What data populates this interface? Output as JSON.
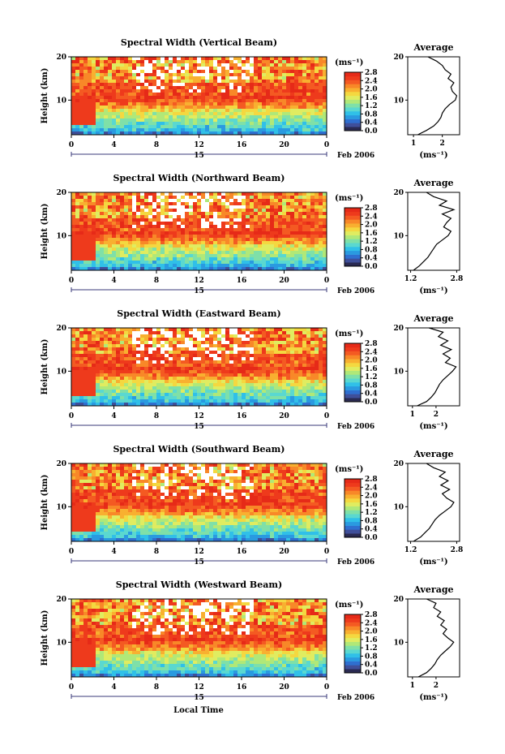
{
  "colors": {
    "scale": [
      "#2a2a52",
      "#3f4f9a",
      "#2f6fd0",
      "#2a9ae0",
      "#30c0e8",
      "#5ad8d0",
      "#7fe0a8",
      "#b0e878",
      "#e0ec60",
      "#f4d840",
      "#f8b030",
      "#f88828",
      "#f45a22",
      "#ee3a1c",
      "#e62a18"
    ]
  },
  "footer": {
    "xlabel": "Local Time"
  },
  "chart_data": [
    {
      "type": "heatmap",
      "title": "Spectral Width (Vertical Beam)",
      "ylabel": "Height (km)",
      "ylim": [
        2,
        20
      ],
      "yticks": [
        10,
        20
      ],
      "xlim": [
        0,
        24
      ],
      "xticks": [
        "0",
        "4",
        "8",
        "12",
        "16",
        "20",
        "0"
      ],
      "day_label": "15",
      "date_label": "Feb 2006",
      "colorbar": {
        "unit": "(ms⁻¹)",
        "ticks": [
          "0.0",
          "0.4",
          "0.8",
          "1.2",
          "1.6",
          "2.0",
          "2.4",
          "2.8"
        ]
      },
      "profile": {
        "title": "Average",
        "xlabel": "(ms⁻¹)",
        "xticks": [
          "1",
          "2"
        ],
        "xlim": [
          0.8,
          2.6
        ],
        "height": [
          2,
          3,
          4,
          5,
          6,
          7,
          8,
          9,
          10,
          11,
          12,
          13,
          14,
          15,
          16,
          17,
          18,
          19,
          20
        ],
        "values": [
          1.15,
          1.45,
          1.7,
          1.85,
          1.95,
          2.0,
          2.1,
          2.25,
          2.45,
          2.5,
          2.35,
          2.3,
          2.4,
          2.2,
          2.3,
          2.1,
          2.0,
          1.8,
          1.5
        ]
      }
    },
    {
      "type": "heatmap",
      "title": "Spectral Width (Northward Beam)",
      "ylabel": "Height (km)",
      "ylim": [
        2,
        20
      ],
      "yticks": [
        10,
        20
      ],
      "xlim": [
        0,
        24
      ],
      "xticks": [
        "0",
        "4",
        "8",
        "12",
        "16",
        "20",
        "0"
      ],
      "day_label": "15",
      "date_label": "Feb 2006",
      "colorbar": {
        "unit": "(ms⁻¹)",
        "ticks": [
          "0.0",
          "0.4",
          "0.8",
          "1.2",
          "1.6",
          "2.0",
          "2.4",
          "2.8"
        ]
      },
      "profile": {
        "title": "Average",
        "xlabel": "(ms⁻¹)",
        "xticks": [
          "1.2",
          "2.8"
        ],
        "xlim": [
          1.1,
          2.9
        ],
        "height": [
          2,
          3,
          4,
          5,
          6,
          7,
          8,
          9,
          10,
          11,
          12,
          13,
          14,
          15,
          16,
          17,
          18,
          19,
          20
        ],
        "values": [
          1.3,
          1.5,
          1.65,
          1.8,
          1.9,
          2.0,
          2.1,
          2.3,
          2.5,
          2.6,
          2.35,
          2.45,
          2.6,
          2.3,
          2.7,
          2.2,
          2.45,
          2.0,
          1.75
        ]
      }
    },
    {
      "type": "heatmap",
      "title": "Spectral Width (Eastward Beam)",
      "ylabel": "Height (km)",
      "ylim": [
        2,
        20
      ],
      "yticks": [
        10,
        20
      ],
      "xlim": [
        0,
        24
      ],
      "xticks": [
        "0",
        "4",
        "8",
        "12",
        "16",
        "20",
        "0"
      ],
      "day_label": "15",
      "date_label": "Feb 2006",
      "colorbar": {
        "unit": "(ms⁻¹)",
        "ticks": [
          "0.0",
          "0.4",
          "0.8",
          "1.2",
          "1.6",
          "2.0",
          "2.4",
          "2.8"
        ]
      },
      "profile": {
        "title": "Average",
        "xlabel": "(ms⁻¹)",
        "xticks": [
          "1",
          "2"
        ],
        "xlim": [
          0.8,
          3.0
        ],
        "height": [
          2,
          3,
          4,
          5,
          6,
          7,
          8,
          9,
          10,
          11,
          12,
          13,
          14,
          15,
          16,
          17,
          18,
          19,
          20
        ],
        "values": [
          1.2,
          1.6,
          1.8,
          1.95,
          2.05,
          2.15,
          2.3,
          2.5,
          2.7,
          2.85,
          2.4,
          2.6,
          2.3,
          2.65,
          2.2,
          2.5,
          2.1,
          2.3,
          1.7
        ]
      }
    },
    {
      "type": "heatmap",
      "title": "Spectral Width (Southward Beam)",
      "ylabel": "Height (km)",
      "ylim": [
        2,
        20
      ],
      "yticks": [
        10,
        20
      ],
      "xlim": [
        0,
        24
      ],
      "xticks": [
        "0",
        "4",
        "8",
        "12",
        "16",
        "20",
        "0"
      ],
      "day_label": "15",
      "date_label": "Feb 2006",
      "colorbar": {
        "unit": "(ms⁻¹)",
        "ticks": [
          "0.0",
          "0.4",
          "0.8",
          "1.2",
          "1.6",
          "2.0",
          "2.4",
          "2.8"
        ]
      },
      "profile": {
        "title": "Average",
        "xlabel": "(ms⁻¹)",
        "xticks": [
          "1.2",
          "2.8"
        ],
        "xlim": [
          1.1,
          2.9
        ],
        "height": [
          2,
          3,
          4,
          5,
          6,
          7,
          8,
          9,
          10,
          11,
          12,
          13,
          14,
          15,
          16,
          17,
          18,
          19,
          20
        ],
        "values": [
          1.3,
          1.55,
          1.7,
          1.85,
          1.95,
          2.05,
          2.2,
          2.4,
          2.6,
          2.7,
          2.45,
          2.3,
          2.55,
          2.25,
          2.5,
          2.2,
          2.4,
          2.0,
          1.75
        ]
      }
    },
    {
      "type": "heatmap",
      "title": "Spectral Width (Westward Beam)",
      "ylabel": "Height (km)",
      "ylim": [
        2,
        20
      ],
      "yticks": [
        10,
        20
      ],
      "xlim": [
        0,
        24
      ],
      "xticks": [
        "0",
        "4",
        "8",
        "12",
        "16",
        "20",
        "0"
      ],
      "day_label": "15",
      "date_label": "Feb 2006",
      "colorbar": {
        "unit": "(ms⁻¹)",
        "ticks": [
          "0.0",
          "0.4",
          "0.8",
          "1.2",
          "1.6",
          "2.0",
          "2.4",
          "2.8"
        ]
      },
      "profile": {
        "title": "Average",
        "xlabel": "(ms⁻¹)",
        "xticks": [
          "1",
          "2"
        ],
        "xlim": [
          0.8,
          3.0
        ],
        "height": [
          2,
          3,
          4,
          5,
          6,
          7,
          8,
          9,
          10,
          11,
          12,
          13,
          14,
          15,
          16,
          17,
          18,
          19,
          20
        ],
        "values": [
          1.25,
          1.6,
          1.8,
          1.95,
          2.05,
          2.2,
          2.4,
          2.6,
          2.75,
          2.5,
          2.3,
          2.45,
          2.2,
          2.35,
          2.05,
          2.2,
          1.9,
          2.0,
          1.6
        ]
      }
    }
  ]
}
